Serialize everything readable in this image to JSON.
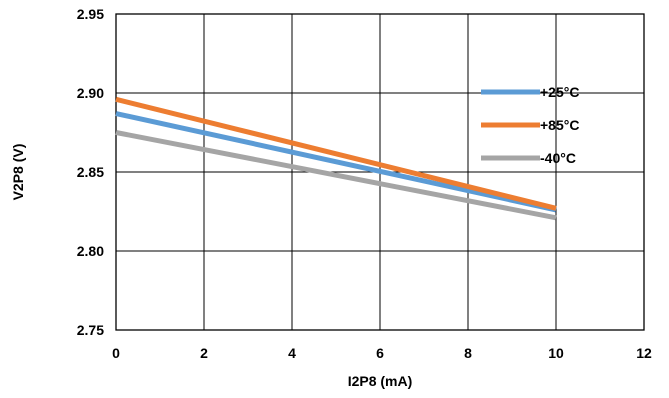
{
  "chart_data": {
    "type": "line",
    "xlabel": "I2P8 (mA)",
    "ylabel": "V2P8 (V)",
    "xlim": [
      0,
      12
    ],
    "ylim": [
      2.75,
      2.95
    ],
    "xticks": [
      0,
      2,
      4,
      6,
      8,
      10,
      12
    ],
    "yticks": [
      2.75,
      2.8,
      2.85,
      2.9,
      2.95
    ],
    "xtick_labels": [
      "0",
      "2",
      "4",
      "6",
      "8",
      "10",
      "12"
    ],
    "ytick_labels": [
      "2.75",
      "2.80",
      "2.85",
      "2.90",
      "2.95"
    ],
    "grid": true,
    "legend_position": "right",
    "series": [
      {
        "name": "+25°C",
        "color": "#5B9BD5",
        "x": [
          0,
          10
        ],
        "y": [
          2.887,
          2.826
        ]
      },
      {
        "name": "+85°C",
        "color": "#ED7D31",
        "x": [
          0,
          10
        ],
        "y": [
          2.896,
          2.827
        ]
      },
      {
        "name": "-40°C",
        "color": "#A5A5A5",
        "x": [
          0,
          10
        ],
        "y": [
          2.875,
          2.821
        ]
      }
    ]
  }
}
